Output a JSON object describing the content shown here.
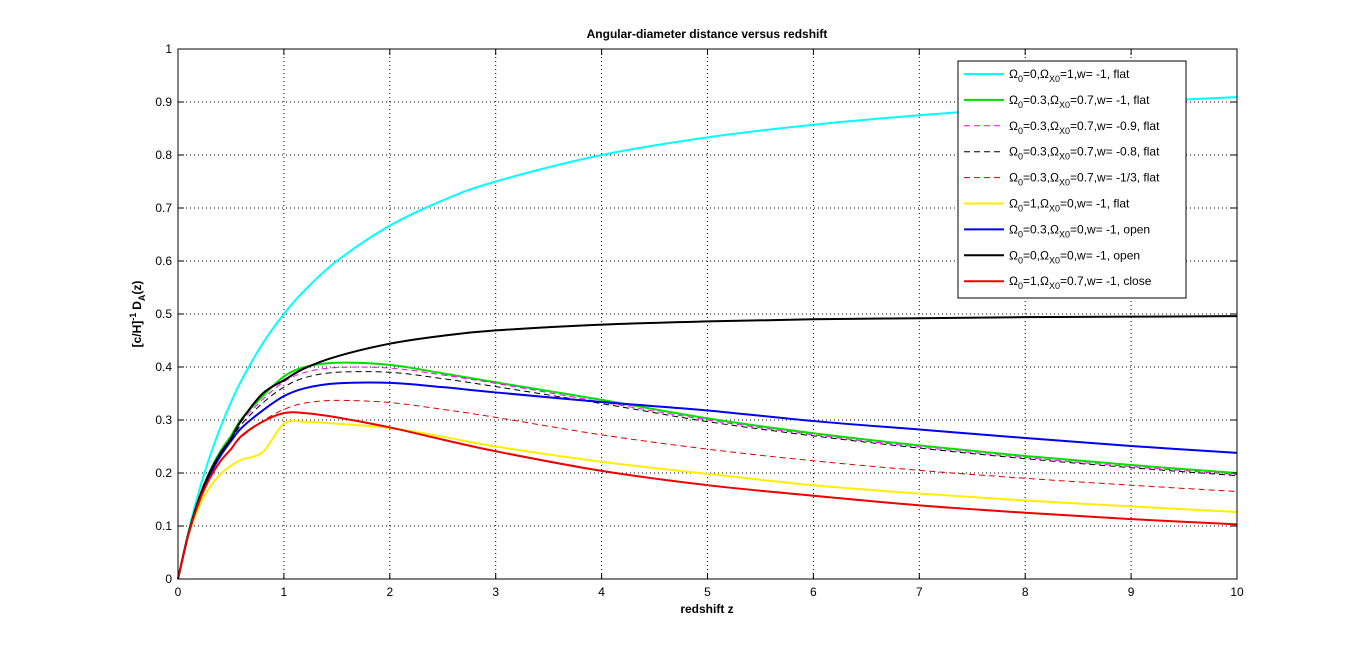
{
  "chart_data": {
    "type": "line",
    "title": "Angular-diameter distance versus redshift",
    "xlabel": "redshift z",
    "ylabel": "[c/H]",
    "ylabel_sup": "-1",
    "ylabel_tail": "D",
    "ylabel_sub": "A",
    "ylabel_end": "(z)",
    "xlim": [
      0,
      10
    ],
    "ylim": [
      0,
      1
    ],
    "xticks": [
      "0",
      "1",
      "2",
      "3",
      "4",
      "5",
      "6",
      "7",
      "8",
      "9",
      "10"
    ],
    "yticks": [
      "0",
      "0.1",
      "0.2",
      "0.3",
      "0.4",
      "0.5",
      "0.6",
      "0.7",
      "0.8",
      "0.9",
      "1"
    ],
    "grid": true,
    "legend_position": "top-right",
    "x": [
      0,
      0.1,
      0.2,
      0.3,
      0.4,
      0.5,
      0.6,
      0.8,
      1.0,
      1.2,
      1.5,
      2.0,
      2.5,
      3.0,
      4.0,
      5.0,
      6.0,
      7.0,
      8.0,
      9.0,
      10.0
    ],
    "series": [
      {
        "label": {
          "l1": "=0,",
          "l2": "=1,w= -1, flat"
        },
        "color": "#00ffff",
        "dash": "solid",
        "width": 2,
        "values": [
          0,
          0.0909,
          0.1667,
          0.2308,
          0.2857,
          0.3333,
          0.375,
          0.4444,
          0.5,
          0.5455,
          0.6,
          0.6667,
          0.7143,
          0.75,
          0.8,
          0.8333,
          0.8571,
          0.875,
          0.8889,
          0.9,
          0.9091
        ]
      },
      {
        "label": {
          "l1": "=0.3,",
          "l2": "=0.7,w= -1, flat"
        },
        "color": "#00dd00",
        "dash": "solid",
        "width": 2,
        "values": [
          0,
          0.087,
          0.153,
          0.203,
          0.241,
          0.27,
          0.302,
          0.345,
          0.382,
          0.4,
          0.408,
          0.404,
          0.388,
          0.371,
          0.338,
          0.303,
          0.275,
          0.252,
          0.232,
          0.215,
          0.2
        ]
      },
      {
        "label": {
          "l1": "=0.3,",
          "l2": "=0.7,w= -0.9, flat"
        },
        "color": "#ff00ff",
        "dash": "6,4",
        "width": 1,
        "values": [
          0,
          0.087,
          0.152,
          0.201,
          0.238,
          0.266,
          0.297,
          0.339,
          0.372,
          0.39,
          0.399,
          0.398,
          0.385,
          0.369,
          0.334,
          0.3,
          0.272,
          0.249,
          0.229,
          0.212,
          0.197
        ]
      },
      {
        "label": {
          "l1": "=0.3,",
          "l2": "=0.7,w= -0.8, flat"
        },
        "color": "#000000",
        "dash": "6,4",
        "width": 1,
        "values": [
          0,
          0.087,
          0.151,
          0.198,
          0.234,
          0.262,
          0.292,
          0.332,
          0.362,
          0.38,
          0.39,
          0.39,
          0.378,
          0.363,
          0.331,
          0.297,
          0.27,
          0.247,
          0.227,
          0.21,
          0.195
        ]
      },
      {
        "label": {
          "l1": "=0.3,",
          "l2": "=0.7,w= -1/3, flat"
        },
        "color": "#dd0000",
        "dash": "6,4",
        "width": 1,
        "values": [
          0,
          0.086,
          0.146,
          0.19,
          0.222,
          0.246,
          0.268,
          0.298,
          0.32,
          0.332,
          0.337,
          0.333,
          0.32,
          0.305,
          0.272,
          0.245,
          0.223,
          0.205,
          0.19,
          0.177,
          0.165
        ]
      },
      {
        "label": {
          "l1": "=1,",
          "l2": "=0,w= -1, flat"
        },
        "color": "#ffee00",
        "dash": "solid",
        "width": 2,
        "values": [
          0,
          0.0832,
          0.1376,
          0.1734,
          0.1976,
          0.2137,
          0.2252,
          0.2396,
          0.2929,
          0.2966,
          0.2929,
          0.2847,
          0.2685,
          0.25,
          0.2211,
          0.1984,
          0.1768,
          0.1612,
          0.1481,
          0.137,
          0.1263
        ]
      },
      {
        "label": {
          "l1": "=0.3,",
          "l2": "=0,w= -1, open"
        },
        "color": "#0000ee",
        "dash": "solid",
        "width": 2,
        "values": [
          0,
          0.0858,
          0.149,
          0.196,
          0.232,
          0.26,
          0.285,
          0.318,
          0.345,
          0.36,
          0.369,
          0.37,
          0.362,
          0.352,
          0.334,
          0.318,
          0.298,
          0.282,
          0.266,
          0.251,
          0.238
        ]
      },
      {
        "label": {
          "l1": "=0,",
          "l2": "=0,w= -1, open"
        },
        "color": "#000000",
        "dash": "solid",
        "width": 2,
        "values": [
          0,
          0.0868,
          0.1528,
          0.2012,
          0.2372,
          0.265,
          0.3,
          0.35,
          0.375,
          0.398,
          0.42,
          0.444,
          0.459,
          0.469,
          0.48,
          0.486,
          0.49,
          0.492,
          0.494,
          0.495,
          0.496
        ]
      },
      {
        "label": {
          "l1": "=1,",
          "l2": "=0.7,w= -1, close"
        },
        "color": "#ee0000",
        "dash": "solid",
        "width": 2,
        "values": [
          0,
          0.085,
          0.146,
          0.19,
          0.222,
          0.245,
          0.27,
          0.297,
          0.313,
          0.313,
          0.305,
          0.286,
          0.263,
          0.241,
          0.204,
          0.177,
          0.157,
          0.139,
          0.125,
          0.113,
          0.103
        ]
      }
    ]
  }
}
